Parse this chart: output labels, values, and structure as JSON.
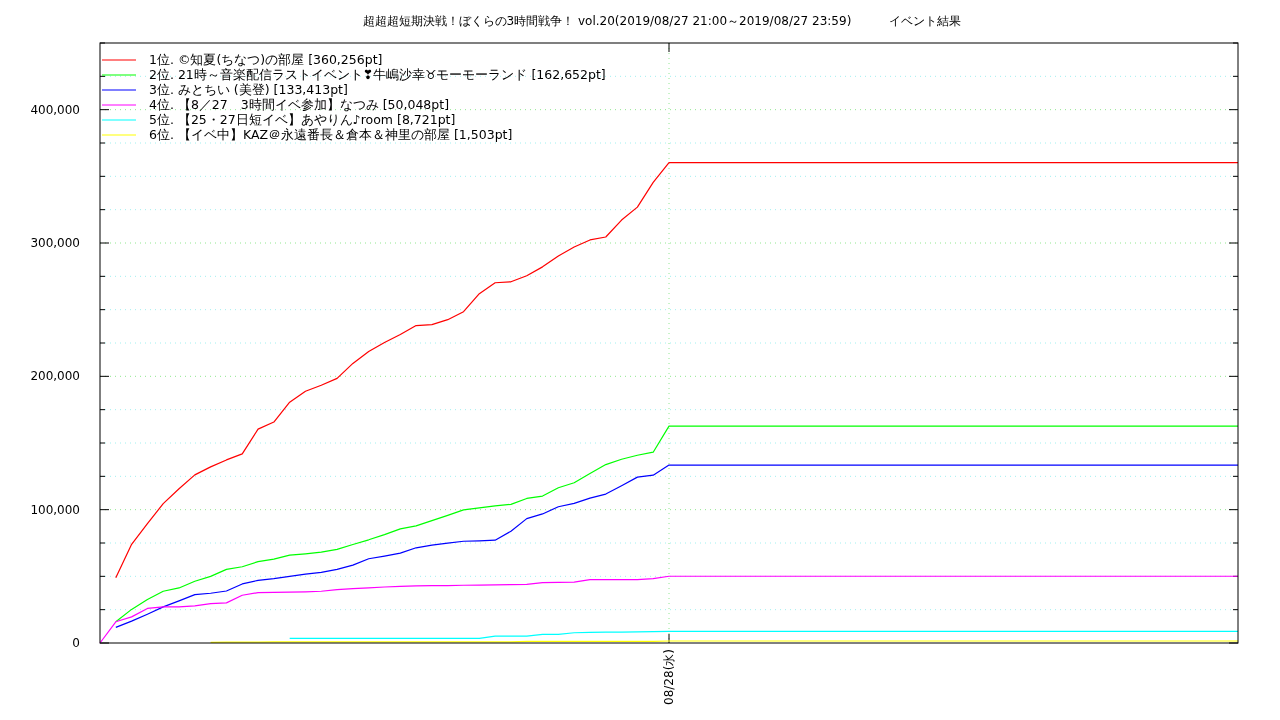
{
  "chart_data": {
    "type": "line",
    "title": "超超超短期決戦！ぼくらの3時間戦争！ vol.20(2019/08/27 21:00～2019/08/27 23:59)          イベント結果",
    "categories": [
      null,
      null,
      null,
      null,
      null,
      null,
      null,
      null,
      null,
      null,
      null,
      null,
      null,
      null,
      null,
      null,
      null,
      null,
      null,
      null,
      null,
      null,
      null,
      null,
      null,
      null,
      null,
      null,
      null,
      null,
      null,
      null,
      null,
      null,
      null,
      null,
      "08/28(水)",
      null,
      null,
      null,
      null,
      null,
      null,
      null,
      null,
      null,
      null,
      null,
      null,
      null,
      null,
      null,
      null,
      null,
      null,
      null,
      null,
      null,
      null,
      null,
      null,
      null,
      null,
      null,
      null,
      null,
      null,
      null,
      null,
      null,
      null,
      null,
      null
    ],
    "ylim": [
      0,
      450000
    ],
    "yticks": [
      {
        "value": 0,
        "label": "0"
      },
      {
        "value": 25000,
        "label": null
      },
      {
        "value": 50000,
        "label": null
      },
      {
        "value": 75000,
        "label": null
      },
      {
        "value": 100000,
        "label": "100,000"
      },
      {
        "value": 125000,
        "label": null
      },
      {
        "value": 150000,
        "label": null
      },
      {
        "value": 175000,
        "label": null
      },
      {
        "value": 200000,
        "label": "200,000"
      },
      {
        "value": 225000,
        "label": null
      },
      {
        "value": 250000,
        "label": null
      },
      {
        "value": 275000,
        "label": null
      },
      {
        "value": 300000,
        "label": "300,000"
      },
      {
        "value": 325000,
        "label": null
      },
      {
        "value": 350000,
        "label": null
      },
      {
        "value": 375000,
        "label": null
      },
      {
        "value": 400000,
        "label": "400,000"
      },
      {
        "value": 425000,
        "label": null
      },
      {
        "value": 450000,
        "label": null
      }
    ],
    "grid": true,
    "legend": "top left",
    "line_style": "solid",
    "marker": "none",
    "series": [
      {
        "name": "1位. ©知夏(ちなつ)の部屋 [360,256pt]",
        "color": "#ff0000",
        "values": [
          null,
          49000,
          74000,
          89600,
          104500,
          115700,
          126100,
          132100,
          137300,
          141800,
          160400,
          165700,
          180600,
          188800,
          193300,
          198500,
          209700,
          218700,
          225400,
          231400,
          238100,
          238800,
          242500,
          248500,
          262000,
          270200,
          270900,
          275400,
          282100,
          290300,
          297000,
          302300,
          304500,
          317200,
          326900,
          345500,
          360256,
          360256,
          360256,
          360256,
          360256,
          360256,
          360256,
          360256,
          360256,
          360256,
          360256,
          360256,
          360256,
          360256,
          360256,
          360256,
          360256,
          360256,
          360256,
          360256,
          360256,
          360256,
          360256,
          360256,
          360256,
          360256,
          360256,
          360256,
          360256,
          360256,
          360256,
          360256,
          360256,
          360256,
          360256,
          360256,
          360256
        ]
      },
      {
        "name": "2位. 21時～音楽配信ラストイベント❣牛嶋沙幸♉モーモーランド [162,652pt]",
        "color": "#00ff00",
        "values": [
          null,
          15900,
          25200,
          32600,
          38800,
          41300,
          46300,
          50000,
          55200,
          57200,
          61000,
          62900,
          65900,
          66900,
          68100,
          70200,
          73900,
          77400,
          81300,
          85600,
          87800,
          91800,
          95700,
          99800,
          101300,
          102800,
          104000,
          108400,
          110200,
          116400,
          120200,
          127100,
          133800,
          137800,
          140800,
          143100,
          162652,
          162652,
          162652,
          162652,
          162652,
          162652,
          162652,
          162652,
          162652,
          162652,
          162652,
          162652,
          162652,
          162652,
          162652,
          162652,
          162652,
          162652,
          162652,
          162652,
          162652,
          162652,
          162652,
          162652,
          162652,
          162652,
          162652,
          162652,
          162652,
          162652,
          162652,
          162652,
          162652,
          162652,
          162652,
          162652,
          162652
        ]
      },
      {
        "name": "3位. みとちい (美登) [133,413pt]",
        "color": "#0000ff",
        "values": [
          null,
          11700,
          16400,
          21600,
          27100,
          31600,
          36300,
          37300,
          39000,
          44300,
          47000,
          48300,
          50000,
          51700,
          53000,
          55200,
          58400,
          63200,
          65200,
          67400,
          71400,
          73400,
          74900,
          76300,
          76600,
          77100,
          83800,
          93300,
          96800,
          102200,
          104700,
          108700,
          111700,
          117900,
          124400,
          125900,
          133413,
          133413,
          133413,
          133413,
          133413,
          133413,
          133413,
          133413,
          133413,
          133413,
          133413,
          133413,
          133413,
          133413,
          133413,
          133413,
          133413,
          133413,
          133413,
          133413,
          133413,
          133413,
          133413,
          133413,
          133413,
          133413,
          133413,
          133413,
          133413,
          133413,
          133413,
          133413,
          133413,
          133413,
          133413,
          133413,
          133413
        ]
      },
      {
        "name": "4位. 【8／27　3時間イベ参加】なつみ [50,048pt]",
        "color": "#ff00ff",
        "values": [
          0,
          15900,
          19600,
          25900,
          27100,
          27100,
          27800,
          29600,
          30100,
          35800,
          37800,
          38000,
          38100,
          38400,
          38800,
          40100,
          40800,
          41400,
          42000,
          42400,
          42800,
          43000,
          43100,
          43300,
          43400,
          43600,
          43800,
          44000,
          45300,
          45500,
          45700,
          47500,
          47500,
          47500,
          47500,
          48300,
          50048,
          50048,
          50048,
          50048,
          50048,
          50048,
          50048,
          50048,
          50048,
          50048,
          50048,
          50048,
          50048,
          50048,
          50048,
          50048,
          50048,
          50048,
          50048,
          50048,
          50048,
          50048,
          50048,
          50048,
          50048,
          50048,
          50048,
          50048,
          50048,
          50048,
          50048,
          50048,
          50048,
          50048,
          50048,
          50048,
          50048
        ]
      },
      {
        "name": "5位. 【25・27日短イベ】あやりん♪room [8,721pt]",
        "color": "#00ffff",
        "values": [
          null,
          null,
          null,
          null,
          null,
          null,
          null,
          null,
          null,
          null,
          null,
          null,
          3500,
          3500,
          3500,
          3500,
          3500,
          3500,
          3500,
          3500,
          3500,
          3500,
          3500,
          3500,
          3500,
          5200,
          5200,
          5200,
          6500,
          6500,
          7700,
          7900,
          8100,
          8200,
          8400,
          8500,
          8721,
          8721,
          8721,
          8721,
          8721,
          8721,
          8721,
          8721,
          8721,
          8721,
          8721,
          8721,
          8721,
          8721,
          8721,
          8721,
          8721,
          8721,
          8721,
          8721,
          8721,
          8721,
          8721,
          8721,
          8721,
          8721,
          8721,
          8721,
          8721,
          8721,
          8721,
          8721,
          8721,
          8721,
          8721,
          8721,
          8721
        ]
      },
      {
        "name": "6位. 【イベ中】KAZ＠永遠番長＆倉本＆神里の部屋 [1,503pt]",
        "color": "#ffff00",
        "values": [
          null,
          null,
          null,
          null,
          null,
          null,
          null,
          500,
          600,
          700,
          700,
          800,
          900,
          900,
          900,
          900,
          900,
          900,
          900,
          900,
          900,
          900,
          900,
          900,
          900,
          900,
          900,
          1200,
          1200,
          1200,
          1200,
          1200,
          1200,
          1200,
          1200,
          1200,
          1503,
          1503,
          1503,
          1503,
          1503,
          1503,
          1503,
          1503,
          1503,
          1503,
          1503,
          1503,
          1503,
          1503,
          1503,
          1503,
          1503,
          1503,
          1503,
          1503,
          1503,
          1503,
          1503,
          1503,
          1503,
          1503,
          1503,
          1503,
          1503,
          1503,
          1503,
          1503,
          1503,
          1503,
          1503,
          1503,
          1503
        ]
      }
    ]
  }
}
